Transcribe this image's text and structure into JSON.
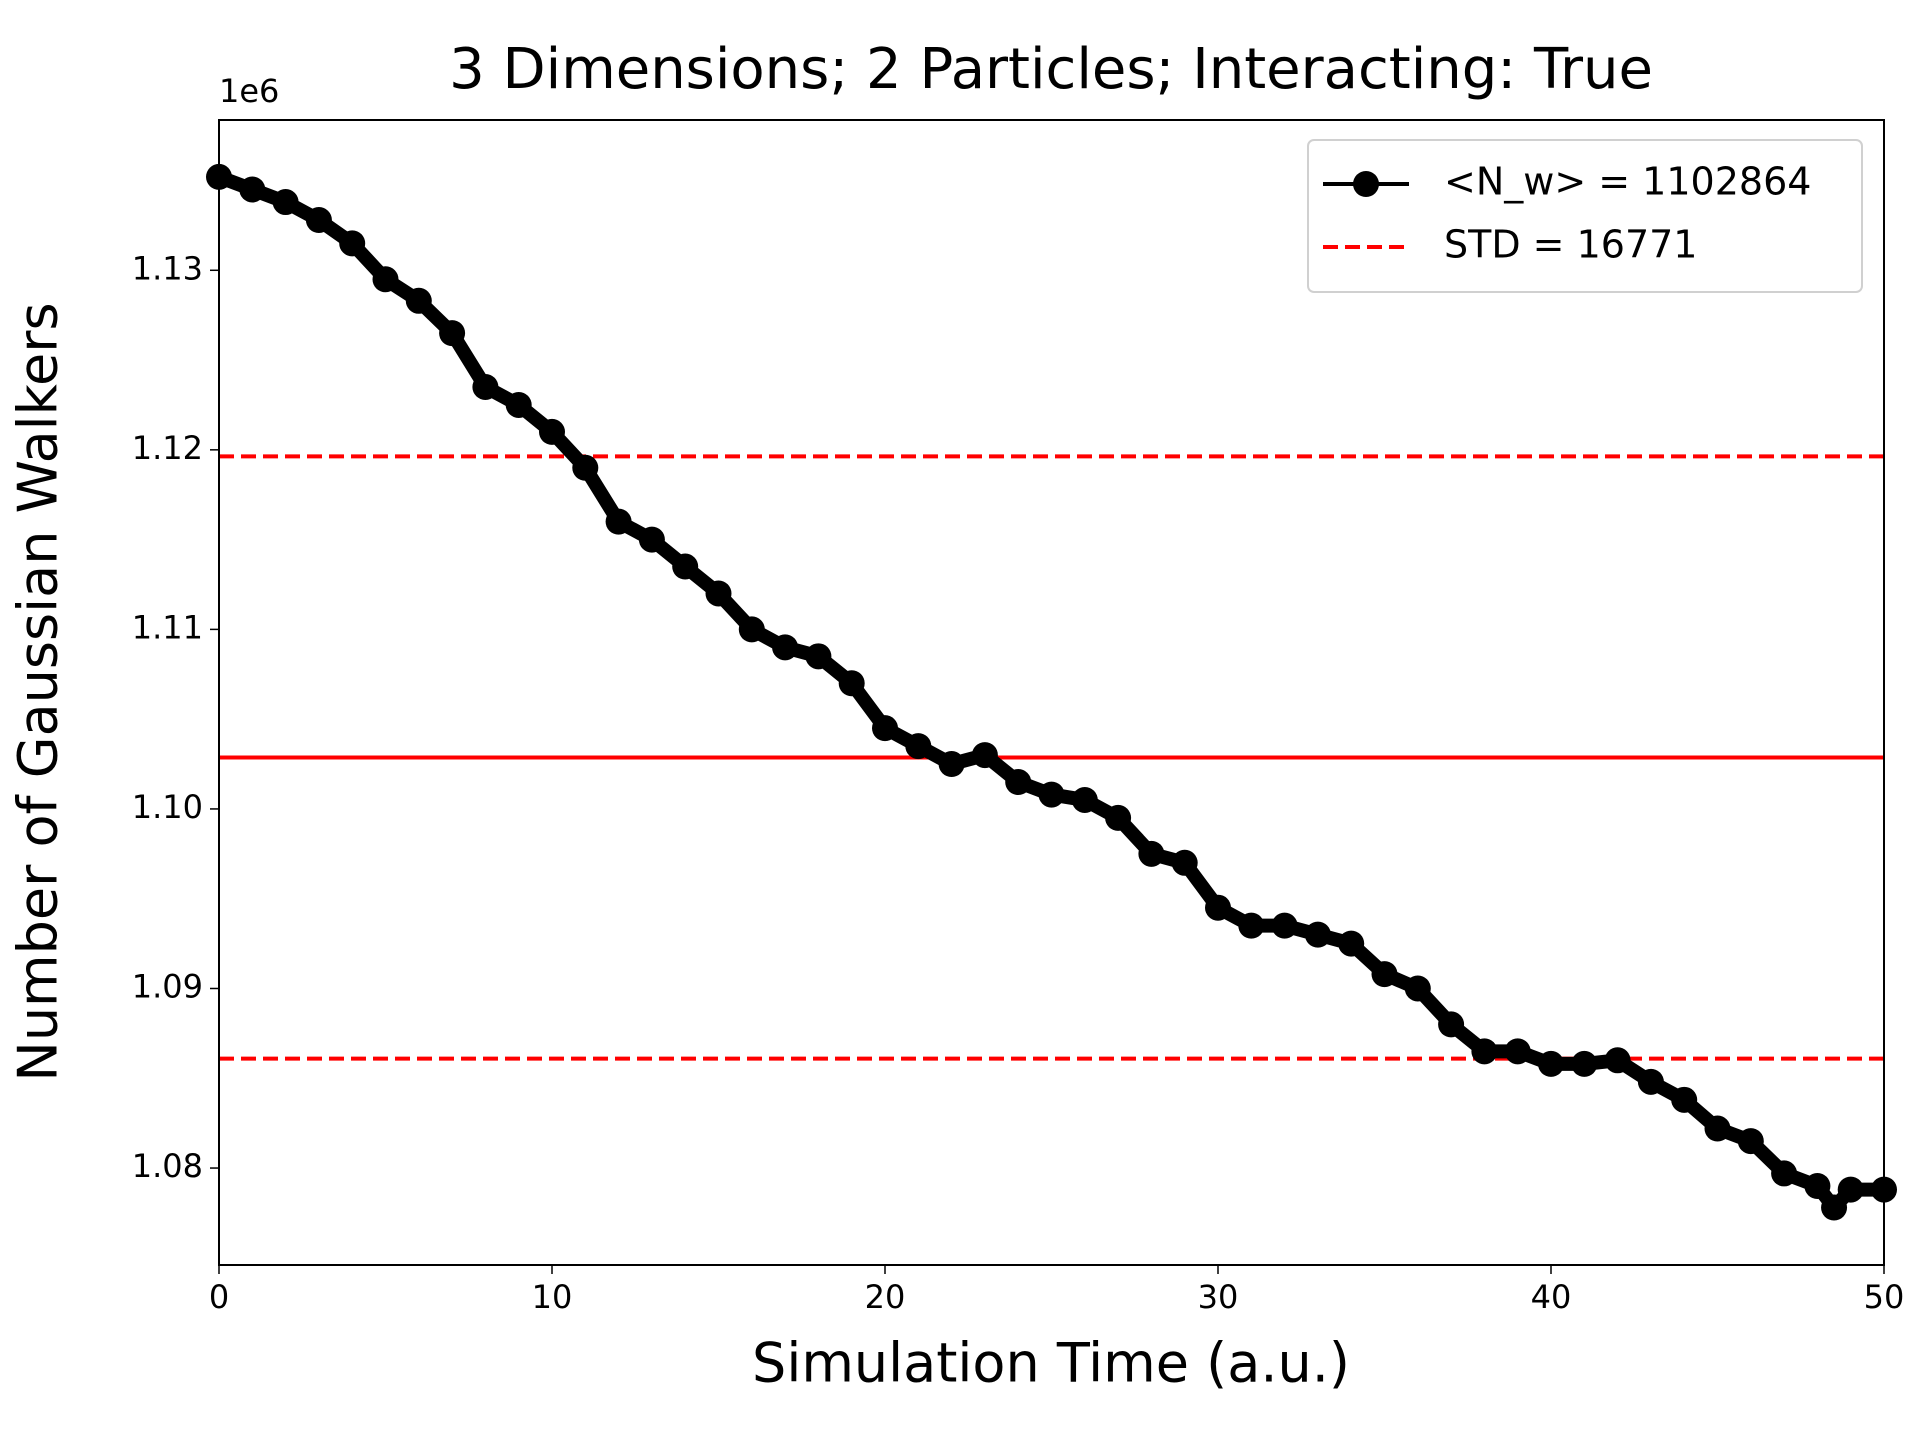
{
  "chart_data": {
    "type": "line",
    "title": "3 Dimensions; 2 Particles; Interacting: True",
    "xlabel": "Simulation Time (a.u.)",
    "ylabel": "Number of Gaussian Walkers",
    "y_offset_label": "1e6",
    "x": [
      0,
      1,
      2,
      3,
      4,
      5,
      6,
      7,
      8,
      9,
      10,
      11,
      12,
      13,
      14,
      15,
      16,
      17,
      18,
      19,
      20,
      21,
      22,
      23,
      24,
      25,
      26,
      27,
      28,
      29,
      30,
      31,
      32,
      33,
      34,
      35,
      36,
      37,
      38,
      39,
      40,
      41,
      42,
      43,
      44,
      45,
      46,
      47,
      48,
      48.5,
      49,
      50
    ],
    "series": [
      {
        "name": "<N_w> = 1102864",
        "color": "#000000",
        "values": [
          1135200,
          1134500,
          1133800,
          1132800,
          1131500,
          1129500,
          1128300,
          1126500,
          1123500,
          1122500,
          1121000,
          1119000,
          1116000,
          1115000,
          1113500,
          1112000,
          1110000,
          1109000,
          1108500,
          1107000,
          1104500,
          1103500,
          1102500,
          1103000,
          1101500,
          1100800,
          1100500,
          1099500,
          1097500,
          1097000,
          1094500,
          1093500,
          1093500,
          1093000,
          1092500,
          1090800,
          1090000,
          1088000,
          1086500,
          1086500,
          1085800,
          1085800,
          1086000,
          1084800,
          1083800,
          1082200,
          1081500,
          1079700,
          1079000,
          1077800,
          1078800,
          1078800
        ]
      }
    ],
    "reference_lines": [
      {
        "value": 1102864,
        "color": "#ff0000",
        "style": "solid"
      },
      {
        "value": 1119635,
        "color": "#ff0000",
        "style": "dashed",
        "name": "STD = 16771"
      },
      {
        "value": 1086093,
        "color": "#ff0000",
        "style": "dashed"
      }
    ],
    "xlim": [
      0,
      50
    ],
    "xticks": [
      0,
      10,
      20,
      30,
      40,
      50
    ],
    "ylim": [
      1074600,
      1138370
    ],
    "yticks": [
      {
        "value": 1080000,
        "label": "1.08"
      },
      {
        "value": 1090000,
        "label": "1.09"
      },
      {
        "value": 1100000,
        "label": "1.10"
      },
      {
        "value": 1110000,
        "label": "1.11"
      },
      {
        "value": 1120000,
        "label": "1.12"
      },
      {
        "value": 1130000,
        "label": "1.13"
      }
    ],
    "legend": "upper right",
    "grid": false
  }
}
